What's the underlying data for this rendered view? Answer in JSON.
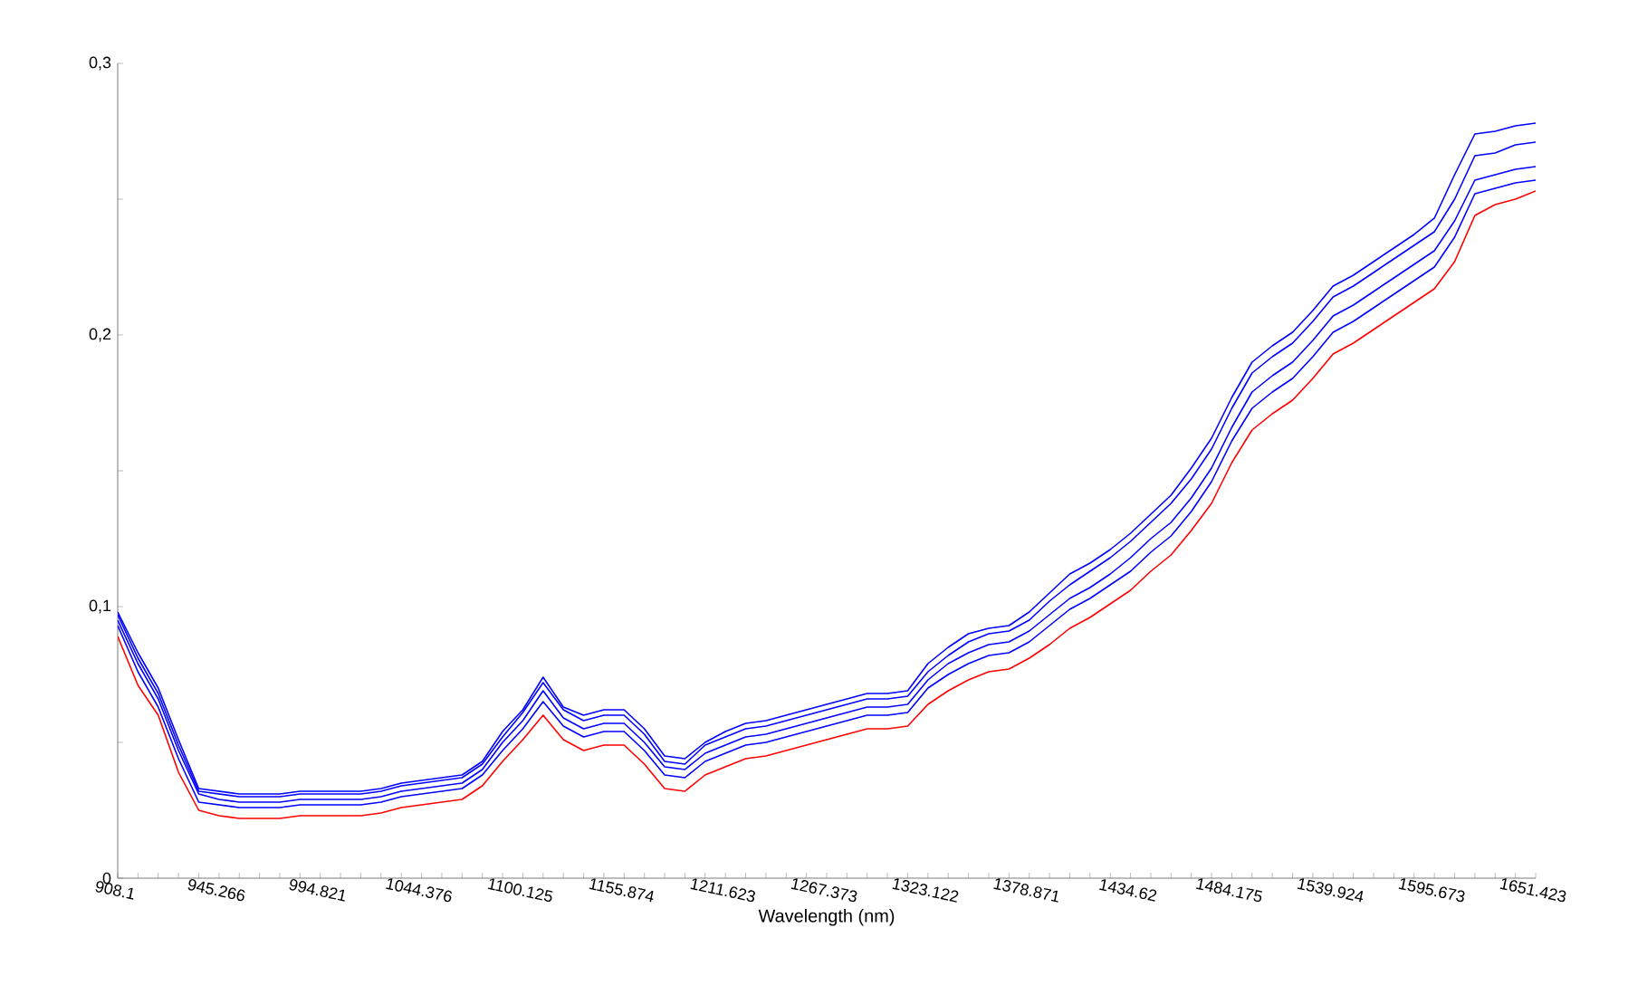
{
  "chart_data": {
    "type": "line",
    "xlabel": "Wavelength (nm)",
    "categories": [
      "908.1",
      null,
      null,
      null,
      null,
      "945.266",
      null,
      null,
      null,
      null,
      "994.821",
      null,
      null,
      null,
      null,
      "1044.376",
      null,
      null,
      null,
      null,
      "1100.125",
      null,
      null,
      null,
      null,
      "1155.874",
      null,
      null,
      null,
      null,
      "1211.623",
      null,
      null,
      null,
      null,
      "1267.373",
      null,
      null,
      null,
      null,
      "1323.122",
      null,
      null,
      null,
      null,
      "1378.871",
      null,
      null,
      null,
      null,
      "1434.62",
      null,
      null,
      null,
      null,
      "1484.175",
      null,
      null,
      null,
      null,
      "1539.924",
      null,
      null,
      null,
      null,
      "1595.673",
      null,
      null,
      null,
      null,
      "1651.423"
    ],
    "ylim": [
      0,
      0.3
    ],
    "yticks": [
      0,
      {
        "value": 0.05,
        "label": null
      },
      {
        "value": 0.1,
        "label": "0,1"
      },
      {
        "value": 0.15,
        "label": null
      },
      {
        "value": 0.2,
        "label": "0,2"
      },
      {
        "value": 0.25,
        "label": null
      },
      {
        "value": 0.3,
        "label": "0,3"
      }
    ],
    "grid": false,
    "marker": "none",
    "line_style": "solid",
    "series": [
      {
        "color": "#0000ff",
        "values": [
          0.098,
          0.083,
          0.07,
          0.051,
          0.033,
          0.032,
          0.031,
          0.031,
          0.031,
          0.032,
          0.032,
          0.032,
          0.032,
          0.033,
          0.035,
          0.036,
          0.037,
          0.038,
          0.043,
          0.054,
          0.062,
          0.074,
          0.063,
          0.06,
          0.062,
          0.062,
          0.055,
          0.045,
          0.044,
          0.05,
          0.054,
          0.057,
          0.058,
          0.06,
          0.062,
          0.064,
          0.066,
          0.068,
          0.068,
          0.069,
          0.079,
          0.085,
          0.09,
          0.092,
          0.093,
          0.098,
          0.105,
          0.112,
          0.116,
          0.121,
          0.127,
          0.134,
          0.141,
          0.151,
          0.162,
          0.177,
          0.19,
          0.196,
          0.201,
          0.209,
          0.218,
          0.222,
          0.227,
          0.232,
          0.237,
          0.243,
          0.259,
          0.274,
          0.275,
          0.277,
          0.278
        ]
      },
      {
        "color": "#0000ff",
        "values": [
          0.097,
          0.081,
          0.068,
          0.049,
          0.032,
          0.031,
          0.03,
          0.03,
          0.03,
          0.031,
          0.031,
          0.031,
          0.031,
          0.032,
          0.034,
          0.035,
          0.036,
          0.037,
          0.042,
          0.052,
          0.061,
          0.072,
          0.062,
          0.058,
          0.06,
          0.06,
          0.053,
          0.043,
          0.042,
          0.049,
          0.052,
          0.055,
          0.056,
          0.058,
          0.06,
          0.062,
          0.064,
          0.066,
          0.066,
          0.067,
          0.076,
          0.082,
          0.087,
          0.09,
          0.091,
          0.095,
          0.102,
          0.108,
          0.113,
          0.118,
          0.124,
          0.131,
          0.138,
          0.147,
          0.158,
          0.173,
          0.186,
          0.192,
          0.197,
          0.205,
          0.214,
          0.218,
          0.223,
          0.228,
          0.233,
          0.238,
          0.25,
          0.266,
          0.267,
          0.27,
          0.271
        ]
      },
      {
        "color": "#0000ff",
        "values": [
          0.095,
          0.079,
          0.066,
          0.047,
          0.031,
          0.029,
          0.028,
          0.028,
          0.028,
          0.029,
          0.029,
          0.029,
          0.029,
          0.03,
          0.032,
          0.033,
          0.034,
          0.035,
          0.04,
          0.05,
          0.058,
          0.069,
          0.059,
          0.055,
          0.057,
          0.057,
          0.05,
          0.041,
          0.04,
          0.046,
          0.049,
          0.052,
          0.053,
          0.055,
          0.057,
          0.059,
          0.061,
          0.063,
          0.063,
          0.064,
          0.073,
          0.079,
          0.083,
          0.086,
          0.087,
          0.091,
          0.097,
          0.103,
          0.107,
          0.112,
          0.118,
          0.125,
          0.131,
          0.14,
          0.151,
          0.166,
          0.179,
          0.185,
          0.19,
          0.198,
          0.207,
          0.211,
          0.216,
          0.221,
          0.226,
          0.231,
          0.242,
          0.257,
          0.259,
          0.261,
          0.262
        ]
      },
      {
        "color": "#0000ff",
        "values": [
          0.093,
          0.076,
          0.063,
          0.044,
          0.028,
          0.027,
          0.026,
          0.026,
          0.026,
          0.027,
          0.027,
          0.027,
          0.027,
          0.028,
          0.03,
          0.031,
          0.032,
          0.033,
          0.038,
          0.047,
          0.055,
          0.065,
          0.056,
          0.052,
          0.054,
          0.054,
          0.047,
          0.038,
          0.037,
          0.043,
          0.046,
          0.049,
          0.05,
          0.052,
          0.054,
          0.056,
          0.058,
          0.06,
          0.06,
          0.061,
          0.07,
          0.075,
          0.079,
          0.082,
          0.083,
          0.087,
          0.093,
          0.099,
          0.103,
          0.108,
          0.113,
          0.12,
          0.126,
          0.135,
          0.146,
          0.161,
          0.173,
          0.179,
          0.184,
          0.192,
          0.201,
          0.205,
          0.21,
          0.215,
          0.22,
          0.225,
          0.236,
          0.252,
          0.254,
          0.256,
          0.257
        ]
      },
      {
        "color": "#ff0000",
        "values": [
          0.089,
          0.071,
          0.06,
          0.039,
          0.025,
          0.023,
          0.022,
          0.022,
          0.022,
          0.023,
          0.023,
          0.023,
          0.023,
          0.024,
          0.026,
          0.027,
          0.028,
          0.029,
          0.034,
          0.043,
          0.051,
          0.06,
          0.051,
          0.047,
          0.049,
          0.049,
          0.042,
          0.033,
          0.032,
          0.038,
          0.041,
          0.044,
          0.045,
          0.047,
          0.049,
          0.051,
          0.053,
          0.055,
          0.055,
          0.056,
          0.064,
          0.069,
          0.073,
          0.076,
          0.077,
          0.081,
          0.086,
          0.092,
          0.096,
          0.101,
          0.106,
          0.113,
          0.119,
          0.128,
          0.138,
          0.153,
          0.165,
          0.171,
          0.176,
          0.184,
          0.193,
          0.197,
          0.202,
          0.207,
          0.212,
          0.217,
          0.227,
          0.244,
          0.248,
          0.25,
          0.253
        ]
      }
    ]
  }
}
